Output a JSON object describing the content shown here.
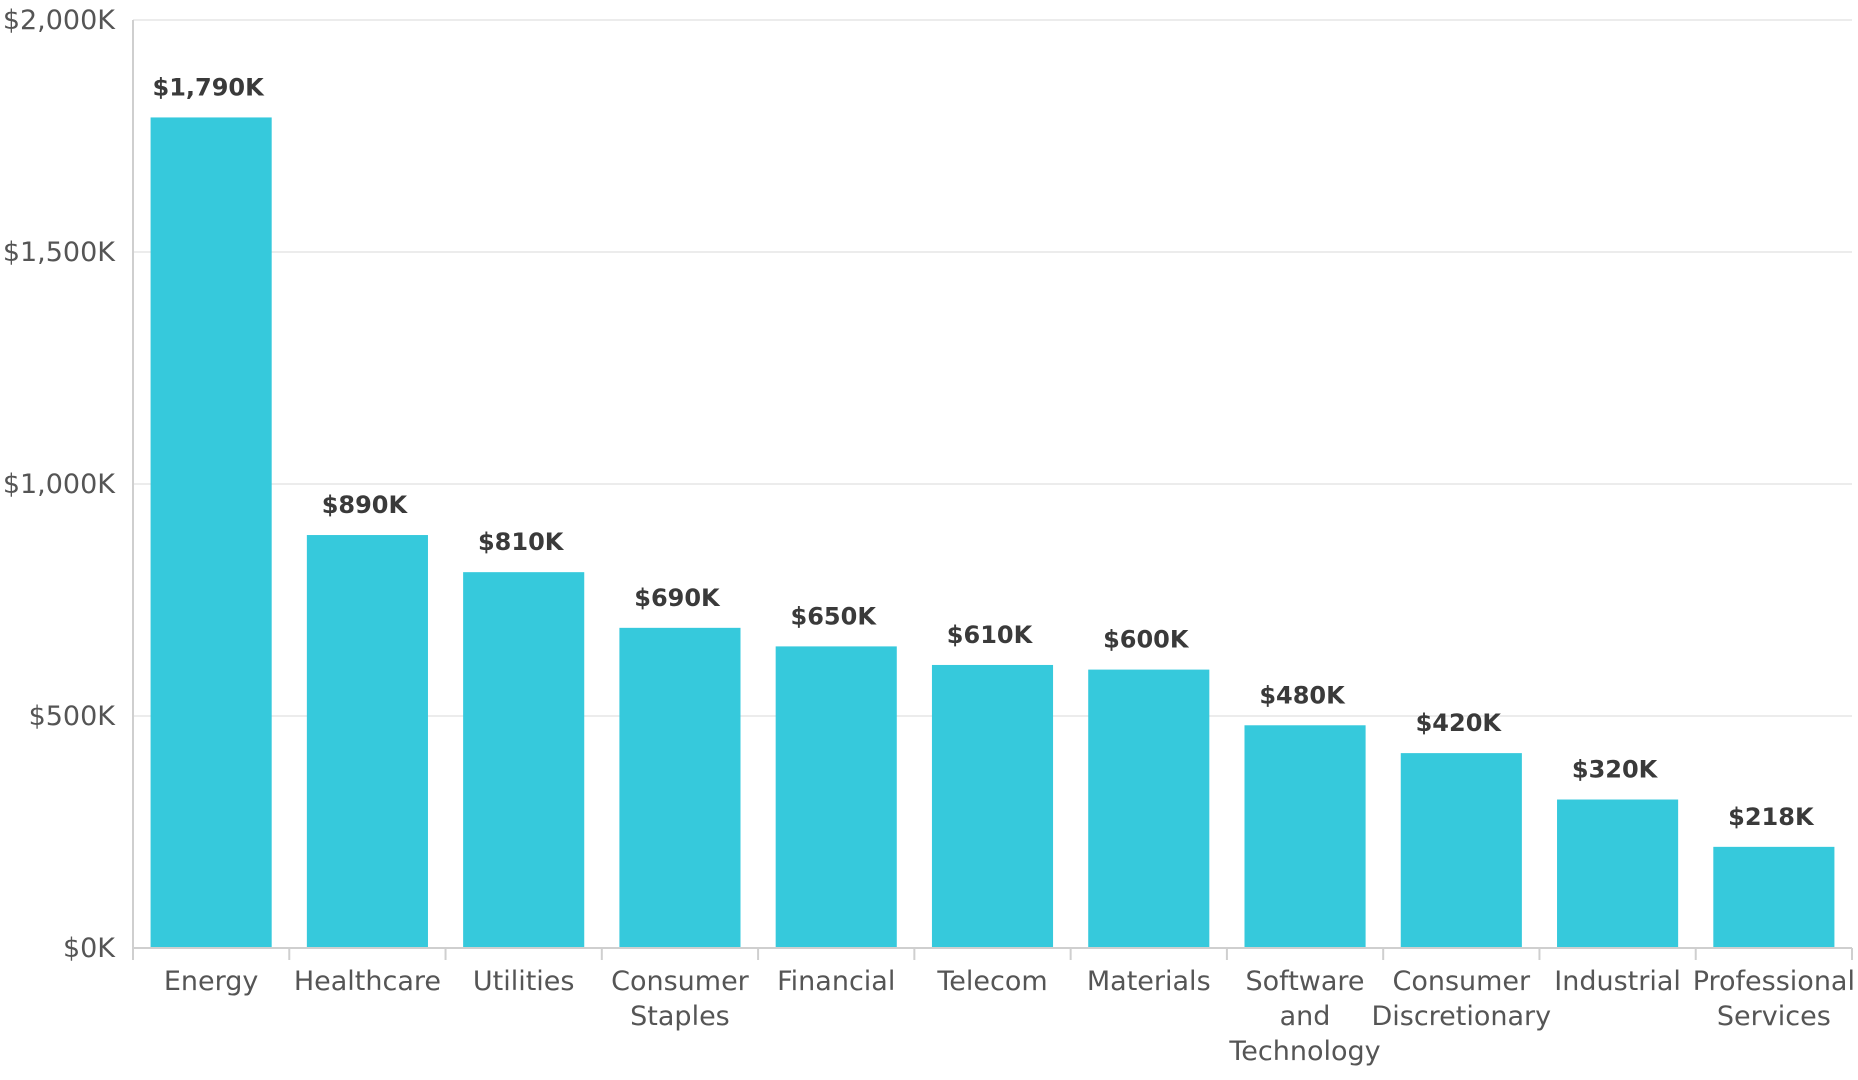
{
  "chart_data": {
    "type": "bar",
    "title": "",
    "xlabel": "",
    "ylabel": "",
    "categories": [
      "Energy",
      "Healthcare",
      "Utilities",
      "Consumer Staples",
      "Financial",
      "Telecom",
      "Materials",
      "Software and Technology",
      "Consumer Discretionary",
      "Industrial",
      "Professional Services"
    ],
    "category_lines": [
      [
        "Energy"
      ],
      [
        "Healthcare"
      ],
      [
        "Utilities"
      ],
      [
        "Consumer",
        "Staples"
      ],
      [
        "Financial"
      ],
      [
        "Telecom"
      ],
      [
        "Materials"
      ],
      [
        "Software",
        "and",
        "Technology"
      ],
      [
        "Consumer",
        "Discretionary"
      ],
      [
        "Industrial"
      ],
      [
        "Professional",
        "Services"
      ]
    ],
    "values": [
      1790,
      890,
      810,
      690,
      650,
      610,
      600,
      480,
      420,
      320,
      218
    ],
    "data_labels": [
      "$1,790K",
      "$890K",
      "$810K",
      "$690K",
      "$650K",
      "$610K",
      "$600K",
      "$480K",
      "$420K",
      "$320K",
      "$218K"
    ],
    "ylim": [
      0,
      2000
    ],
    "y_ticks": [
      0,
      500,
      1000,
      1500,
      2000
    ],
    "y_tick_labels": [
      "$0K",
      "$500K",
      "$1,000K",
      "$1,500K",
      "$2,000K"
    ],
    "grid": true,
    "legend": "none",
    "bar_color": "#36c9dc"
  }
}
